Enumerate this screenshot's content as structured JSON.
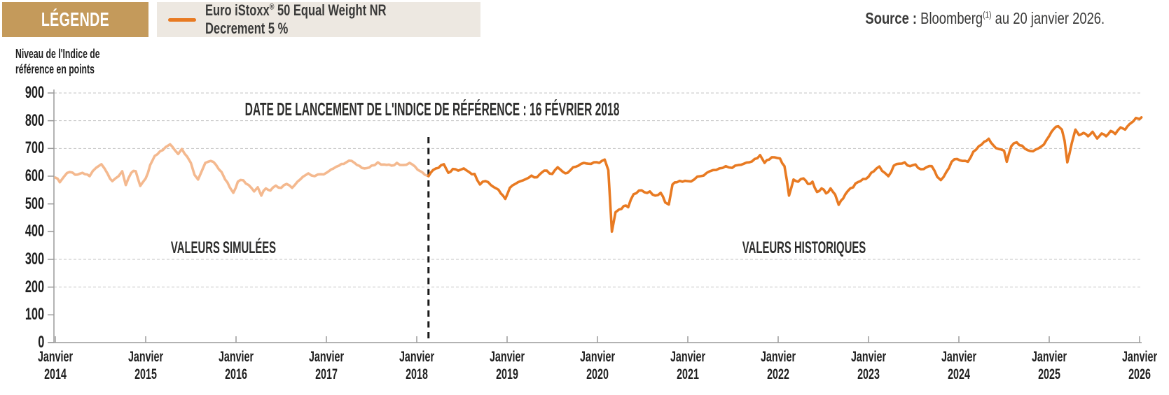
{
  "legend": {
    "title": "LÉGENDE",
    "series_label_pre": "Euro iStoxx",
    "series_label_sup": "®",
    "series_label_post": " 50 Equal Weight NR Decrement 5 %"
  },
  "source": {
    "label_bold": "Source : ",
    "name": "Bloomberg",
    "sup": "(1)",
    "suffix": " au 20 janvier 2026."
  },
  "y_axis_title": {
    "line1": "Niveau de l'Indice de",
    "line2": "référence en points"
  },
  "annotations": {
    "launch": "DATE DE LANCEMENT DE L'INDICE DE RÉFÉRENCE : 16 FÉVRIER 2018",
    "simulated": "VALEURS SIMULÉES",
    "historical": "VALEURS HISTORIQUES"
  },
  "colors": {
    "legend_gold": "#C49A5B",
    "legend_beige": "#EDE8E1",
    "orange_dark": "#E87A22",
    "orange_light": "#F4B98F",
    "grid": "#C3C3C3",
    "axis": "#9A9A9A",
    "launch_line": "#1A1A1A",
    "text_dark": "#2E2E2D"
  },
  "chart_data": {
    "type": "line",
    "title": "",
    "xlabel": "",
    "ylabel": "Niveau de l'Indice de référence en points",
    "ylim": [
      0,
      900
    ],
    "y_ticks": [
      0,
      100,
      200,
      300,
      400,
      500,
      600,
      700,
      800,
      900
    ],
    "gridline_values": [
      200,
      300,
      700,
      800,
      900
    ],
    "grid": "dashed-horizontal",
    "x_tick_prefix": "Janvier",
    "x_tick_years": [
      2014,
      2015,
      2016,
      2017,
      2018,
      2019,
      2020,
      2021,
      2022,
      2023,
      2024,
      2025,
      2026
    ],
    "launch_line_x": 2018.13,
    "legend_position": "top-left",
    "series": [
      {
        "name": "Valeurs simulées (Euro iStoxx 50 Equal Weight NR Decrement 5 %)",
        "color": "#F4B98F",
        "points": [
          [
            2014.0,
            595
          ],
          [
            2014.05,
            578
          ],
          [
            2014.1,
            600
          ],
          [
            2014.16,
            615
          ],
          [
            2014.22,
            605
          ],
          [
            2014.3,
            612
          ],
          [
            2014.38,
            600
          ],
          [
            2014.45,
            630
          ],
          [
            2014.51,
            643
          ],
          [
            2014.58,
            608
          ],
          [
            2014.63,
            582
          ],
          [
            2014.7,
            600
          ],
          [
            2014.74,
            618
          ],
          [
            2014.78,
            568
          ],
          [
            2014.84,
            612
          ],
          [
            2014.89,
            618
          ],
          [
            2014.94,
            565
          ],
          [
            2015.0,
            592
          ],
          [
            2015.05,
            640
          ],
          [
            2015.1,
            673
          ],
          [
            2015.16,
            690
          ],
          [
            2015.22,
            705
          ],
          [
            2015.27,
            715
          ],
          [
            2015.32,
            695
          ],
          [
            2015.36,
            680
          ],
          [
            2015.4,
            698
          ],
          [
            2015.46,
            670
          ],
          [
            2015.5,
            648
          ],
          [
            2015.54,
            605
          ],
          [
            2015.58,
            588
          ],
          [
            2015.62,
            618
          ],
          [
            2015.66,
            648
          ],
          [
            2015.72,
            655
          ],
          [
            2015.78,
            640
          ],
          [
            2015.84,
            615
          ],
          [
            2015.88,
            588
          ],
          [
            2015.93,
            560
          ],
          [
            2015.97,
            540
          ],
          [
            2016.02,
            580
          ],
          [
            2016.08,
            585
          ],
          [
            2016.14,
            568
          ],
          [
            2016.2,
            545
          ],
          [
            2016.24,
            560
          ],
          [
            2016.28,
            530
          ],
          [
            2016.33,
            556
          ],
          [
            2016.38,
            548
          ],
          [
            2016.44,
            566
          ],
          [
            2016.5,
            558
          ],
          [
            2016.56,
            572
          ],
          [
            2016.62,
            558
          ],
          [
            2016.68,
            580
          ],
          [
            2016.74,
            598
          ],
          [
            2016.8,
            610
          ],
          [
            2016.87,
            600
          ],
          [
            2016.94,
            607
          ],
          [
            2017.0,
            612
          ],
          [
            2017.08,
            628
          ],
          [
            2017.14,
            638
          ],
          [
            2017.22,
            650
          ],
          [
            2017.28,
            655
          ],
          [
            2017.34,
            640
          ],
          [
            2017.42,
            628
          ],
          [
            2017.5,
            638
          ],
          [
            2017.57,
            650
          ],
          [
            2017.64,
            642
          ],
          [
            2017.72,
            638
          ],
          [
            2017.78,
            648
          ],
          [
            2017.85,
            640
          ],
          [
            2017.92,
            648
          ],
          [
            2017.98,
            635
          ],
          [
            2018.04,
            618
          ],
          [
            2018.09,
            605
          ],
          [
            2018.13,
            600
          ]
        ]
      },
      {
        "name": "Valeurs historiques (Euro iStoxx 50 Equal Weight NR Decrement 5 %)",
        "color": "#E87A22",
        "points": [
          [
            2018.13,
            600
          ],
          [
            2018.18,
            622
          ],
          [
            2018.24,
            630
          ],
          [
            2018.3,
            643
          ],
          [
            2018.35,
            612
          ],
          [
            2018.4,
            626
          ],
          [
            2018.46,
            620
          ],
          [
            2018.52,
            628
          ],
          [
            2018.58,
            615
          ],
          [
            2018.64,
            608
          ],
          [
            2018.7,
            570
          ],
          [
            2018.76,
            582
          ],
          [
            2018.82,
            568
          ],
          [
            2018.88,
            556
          ],
          [
            2018.93,
            538
          ],
          [
            2018.98,
            518
          ],
          [
            2019.03,
            558
          ],
          [
            2019.09,
            572
          ],
          [
            2019.15,
            582
          ],
          [
            2019.21,
            590
          ],
          [
            2019.27,
            602
          ],
          [
            2019.33,
            596
          ],
          [
            2019.38,
            612
          ],
          [
            2019.44,
            620
          ],
          [
            2019.5,
            608
          ],
          [
            2019.56,
            632
          ],
          [
            2019.62,
            615
          ],
          [
            2019.67,
            612
          ],
          [
            2019.73,
            632
          ],
          [
            2019.79,
            638
          ],
          [
            2019.85,
            648
          ],
          [
            2019.9,
            645
          ],
          [
            2019.96,
            650
          ],
          [
            2020.02,
            648
          ],
          [
            2020.08,
            660
          ],
          [
            2020.12,
            622
          ],
          [
            2020.16,
            400
          ],
          [
            2020.2,
            470
          ],
          [
            2020.24,
            480
          ],
          [
            2020.29,
            492
          ],
          [
            2020.34,
            488
          ],
          [
            2020.4,
            535
          ],
          [
            2020.46,
            548
          ],
          [
            2020.52,
            542
          ],
          [
            2020.58,
            545
          ],
          [
            2020.64,
            530
          ],
          [
            2020.7,
            540
          ],
          [
            2020.75,
            505
          ],
          [
            2020.79,
            498
          ],
          [
            2020.83,
            570
          ],
          [
            2020.88,
            578
          ],
          [
            2020.94,
            580
          ],
          [
            2021.0,
            582
          ],
          [
            2021.07,
            588
          ],
          [
            2021.14,
            600
          ],
          [
            2021.21,
            612
          ],
          [
            2021.28,
            622
          ],
          [
            2021.35,
            628
          ],
          [
            2021.42,
            636
          ],
          [
            2021.49,
            630
          ],
          [
            2021.56,
            640
          ],
          [
            2021.62,
            645
          ],
          [
            2021.68,
            650
          ],
          [
            2021.74,
            662
          ],
          [
            2021.8,
            676
          ],
          [
            2021.85,
            648
          ],
          [
            2021.9,
            660
          ],
          [
            2021.96,
            668
          ],
          [
            2022.02,
            664
          ],
          [
            2022.07,
            636
          ],
          [
            2022.12,
            530
          ],
          [
            2022.17,
            588
          ],
          [
            2022.22,
            580
          ],
          [
            2022.28,
            592
          ],
          [
            2022.33,
            572
          ],
          [
            2022.38,
            580
          ],
          [
            2022.43,
            543
          ],
          [
            2022.48,
            556
          ],
          [
            2022.53,
            538
          ],
          [
            2022.58,
            556
          ],
          [
            2022.63,
            534
          ],
          [
            2022.67,
            497
          ],
          [
            2022.72,
            520
          ],
          [
            2022.77,
            546
          ],
          [
            2022.83,
            560
          ],
          [
            2022.88,
            578
          ],
          [
            2022.94,
            590
          ],
          [
            2023.0,
            598
          ],
          [
            2023.06,
            618
          ],
          [
            2023.12,
            635
          ],
          [
            2023.18,
            612
          ],
          [
            2023.22,
            600
          ],
          [
            2023.28,
            638
          ],
          [
            2023.34,
            645
          ],
          [
            2023.4,
            650
          ],
          [
            2023.46,
            636
          ],
          [
            2023.52,
            642
          ],
          [
            2023.58,
            625
          ],
          [
            2023.64,
            632
          ],
          [
            2023.7,
            636
          ],
          [
            2023.76,
            598
          ],
          [
            2023.8,
            586
          ],
          [
            2023.86,
            614
          ],
          [
            2023.92,
            652
          ],
          [
            2023.98,
            662
          ],
          [
            2024.04,
            655
          ],
          [
            2024.1,
            652
          ],
          [
            2024.16,
            688
          ],
          [
            2024.22,
            708
          ],
          [
            2024.28,
            724
          ],
          [
            2024.33,
            735
          ],
          [
            2024.38,
            712
          ],
          [
            2024.44,
            698
          ],
          [
            2024.5,
            692
          ],
          [
            2024.53,
            652
          ],
          [
            2024.58,
            708
          ],
          [
            2024.64,
            722
          ],
          [
            2024.7,
            710
          ],
          [
            2024.76,
            694
          ],
          [
            2024.82,
            690
          ],
          [
            2024.88,
            700
          ],
          [
            2024.94,
            714
          ],
          [
            2025.0,
            745
          ],
          [
            2025.05,
            770
          ],
          [
            2025.1,
            780
          ],
          [
            2025.14,
            768
          ],
          [
            2025.17,
            728
          ],
          [
            2025.2,
            650
          ],
          [
            2025.25,
            720
          ],
          [
            2025.29,
            768
          ],
          [
            2025.33,
            748
          ],
          [
            2025.38,
            756
          ],
          [
            2025.43,
            744
          ],
          [
            2025.48,
            760
          ],
          [
            2025.53,
            736
          ],
          [
            2025.58,
            754
          ],
          [
            2025.63,
            744
          ],
          [
            2025.68,
            763
          ],
          [
            2025.73,
            752
          ],
          [
            2025.79,
            776
          ],
          [
            2025.84,
            768
          ],
          [
            2025.89,
            788
          ],
          [
            2025.93,
            798
          ],
          [
            2025.96,
            810
          ],
          [
            2026.0,
            806
          ],
          [
            2026.02,
            812
          ]
        ]
      }
    ]
  }
}
